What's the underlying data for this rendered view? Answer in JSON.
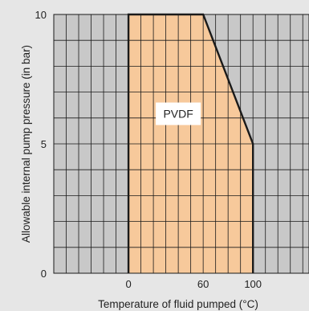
{
  "chart_data": {
    "type": "area",
    "title": "",
    "xlabel": "Temperature of fluid pumped (°C)",
    "ylabel": "Allowable internal pump pressure (in bar)",
    "x_ticks": [
      "0",
      "60",
      "100"
    ],
    "y_ticks": [
      "0",
      "5",
      "10"
    ],
    "xlim": [
      -60,
      145
    ],
    "ylim": [
      0,
      10
    ],
    "grid": true,
    "series": [
      {
        "name": "PVDF",
        "boundary": [
          [
            0,
            0
          ],
          [
            0,
            10
          ],
          [
            60,
            10
          ],
          [
            100,
            5
          ],
          [
            100,
            0
          ]
        ]
      }
    ],
    "colors": {
      "background": "#e6e6e6",
      "plot_area": "#c8c8c8",
      "region_fill": "#f7c99b",
      "gridline": "#1a1a1a",
      "boundary": "#1a1a1a"
    }
  }
}
